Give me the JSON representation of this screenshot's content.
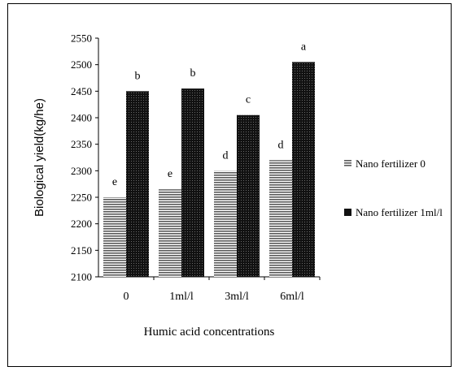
{
  "chart_data": {
    "type": "bar",
    "xlabel": "Humic acid concentrations",
    "ylabel": "Biological yield(kg/he)",
    "ylim": [
      2100,
      2550
    ],
    "yticks": [
      2100,
      2150,
      2200,
      2250,
      2300,
      2350,
      2400,
      2450,
      2500,
      2550
    ],
    "categories": [
      "0",
      "1ml/l",
      "3ml/l",
      "6ml/l"
    ],
    "series": [
      {
        "name": "Nano fertilizer  0",
        "values": [
          2250,
          2265,
          2300,
          2320
        ],
        "labels": [
          "e",
          "e",
          "d",
          "d"
        ],
        "color": "#c8c8c8",
        "pattern": "horizontal-lines"
      },
      {
        "name": "Nano fertilizer  1ml/l",
        "values": [
          2450,
          2455,
          2405,
          2505
        ],
        "labels": [
          "b",
          "b",
          "c",
          "a"
        ],
        "color": "#111111",
        "pattern": "dark-dots"
      }
    ],
    "legend_position": "right",
    "grid": false
  }
}
